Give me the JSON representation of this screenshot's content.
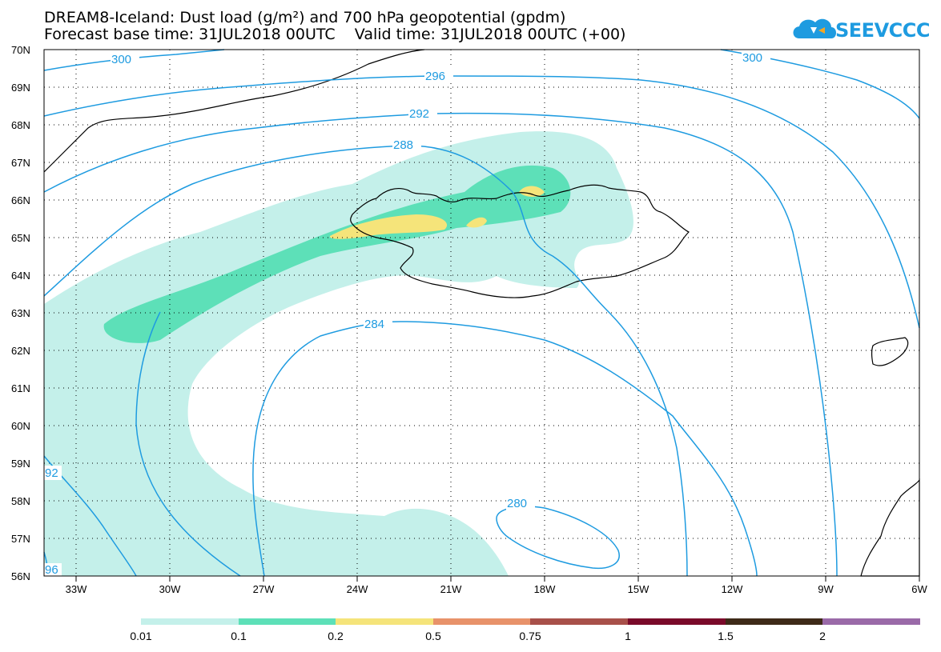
{
  "header": {
    "title_line1": "DREAM8-Iceland: Dust load (g/m²) and 700 hPa geopotential (gpdm)",
    "title_line2": "Forecast base time: 31JUL2018 00UTC    Valid time: 31JUL2018 00UTC (+00)",
    "logo_text": "SEEVCCC"
  },
  "map": {
    "lat_labels": [
      "70N",
      "69N",
      "68N",
      "67N",
      "66N",
      "65N",
      "64N",
      "63N",
      "62N",
      "61N",
      "60N",
      "59N",
      "58N",
      "57N",
      "56N"
    ],
    "lon_labels": [
      "33W",
      "30W",
      "27W",
      "24W",
      "21W",
      "18W",
      "15W",
      "12W",
      "9W",
      "6W"
    ],
    "contour_labels": [
      "300",
      "296",
      "292",
      "288",
      "284",
      "280",
      "300",
      "92",
      "96"
    ],
    "contour_color": "#1e9be0",
    "coast_color": "#000000"
  },
  "legend": {
    "labels": [
      "0.01",
      "0.1",
      "0.2",
      "0.5",
      "0.75",
      "1",
      "1.5",
      "2"
    ],
    "colors": [
      "#c4f0ea",
      "#5de0b8",
      "#f5e47a",
      "#e8926a",
      "#a8504a",
      "#7a0a2a",
      "#3e2a18",
      "#9a6aa8"
    ]
  }
}
